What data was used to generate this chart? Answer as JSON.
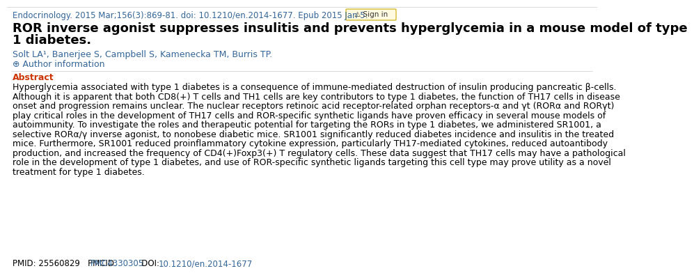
{
  "journal_line": "Endocrinology. 2015 Mar;156(3):869-81. doi: 10.1210/en.2014-1677. Epub 2015 Jan 5.",
  "journal_color": "#336699",
  "title_line1": "ROR inverse agonist suppresses insulitis and prevents hyperglycemia in a mouse model of type",
  "title_line2": "1 diabetes.",
  "title_color": "#000000",
  "authors": "Solt LA¹, Banerjee S, Campbell S, Kamenecka TM, Burris TP.",
  "authors_color": "#336699",
  "abstract_label": "Abstract",
  "abstract_color": "#cc3300",
  "abstract_lines": [
    "Hyperglycemia associated with type 1 diabetes is a consequence of immune-mediated destruction of insulin producing pancreatic β-cells.",
    "Although it is apparent that both CD8(+) T cells and TH1 cells are key contributors to type 1 diabetes, the function of TH17 cells in disease",
    "onset and progression remains unclear. The nuclear receptors retinoic acid receptor-related orphan receptors-α and γt (RORα and RORγt)",
    "play critical roles in the development of TH17 cells and ROR-specific synthetic ligands have proven efficacy in several mouse models of",
    "autoimmunity. To investigate the roles and therapeutic potential for targeting the RORs in type 1 diabetes, we administered SR1001, a",
    "selective RORα/γ inverse agonist, to nonobese diabetic mice. SR1001 significantly reduced diabetes incidence and insulitis in the treated",
    "mice. Furthermore, SR1001 reduced proinflammatory cytokine expression, particularly TH17-mediated cytokines, reduced autoantibody",
    "production, and increased the frequency of CD4(+)Foxp3(+) T regulatory cells. These data suggest that TH17 cells may have a pathological",
    "role in the development of type 1 diabetes, and use of ROR-specific synthetic ligands targeting this cell type may prove utility as a novel",
    "treatment for type 1 diabetes."
  ],
  "abstract_text_color": "#000000",
  "highlight_color": "#cc6600",
  "pmid_text": "PMID: 25560829   PMCID: ",
  "pmcid_text": "PMC4330305",
  "doi_label": "   DOI: ",
  "doi_text": "10.1210/en.2014-1677",
  "pmid_color": "#000000",
  "link_color": "#336699",
  "bg_color": "#ffffff",
  "border_color": "#cccccc",
  "font_size_journal": 8.5,
  "font_size_title": 13.0,
  "font_size_authors": 9.0,
  "font_size_abstract": 9.0,
  "font_size_pmid": 8.5
}
